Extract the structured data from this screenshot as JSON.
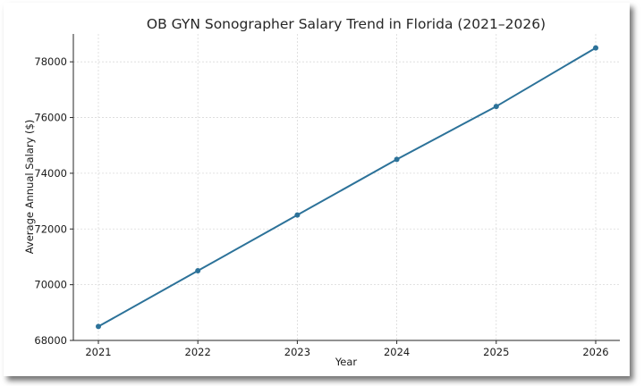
{
  "chart_data": {
    "type": "line",
    "title": "OB GYN Sonographer Salary Trend in Florida (2021–2026)",
    "xlabel": "Year",
    "ylabel": "Average Annual Salary ($)",
    "x": [
      "2021",
      "2022",
      "2023",
      "2024",
      "2025",
      "2026"
    ],
    "series": [
      {
        "values": [
          68500,
          70500,
          72500,
          74500,
          76400,
          78500
        ],
        "color": "#2c7299"
      }
    ],
    "ylim": [
      68000,
      79000
    ],
    "yticks": [
      68000,
      70000,
      72000,
      74000,
      76000,
      78000
    ],
    "grid": true,
    "legend": "none",
    "markers": true
  }
}
